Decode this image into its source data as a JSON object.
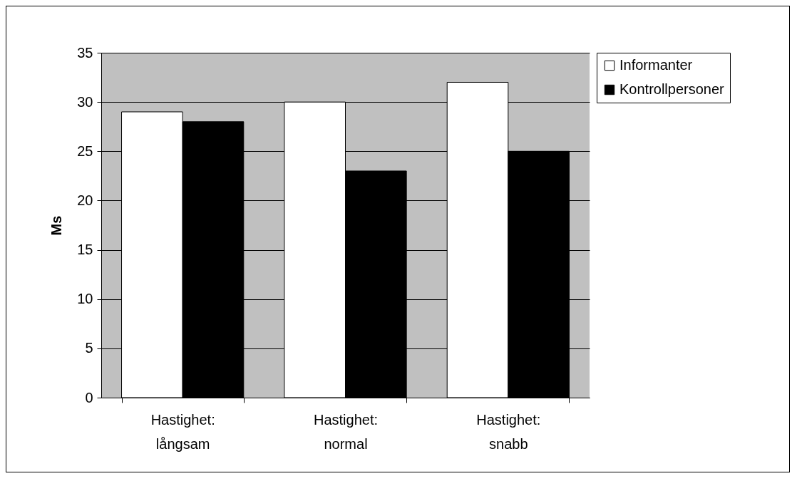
{
  "chart_data": {
    "type": "bar",
    "ylabel": "Ms",
    "categories": [
      "Hastighet: långsam",
      "Hastighet: normal",
      "Hastighet: snabb"
    ],
    "series": [
      {
        "name": "Informanter",
        "color": "#ffffff",
        "values": [
          29,
          30,
          32
        ]
      },
      {
        "name": "Kontrollpersoner",
        "color": "#000000",
        "values": [
          28,
          23,
          25
        ]
      }
    ],
    "ylim": [
      0,
      35
    ],
    "yticks": [
      0,
      5,
      10,
      15,
      20,
      25,
      30,
      35
    ],
    "grid": "y",
    "legend": "right"
  }
}
